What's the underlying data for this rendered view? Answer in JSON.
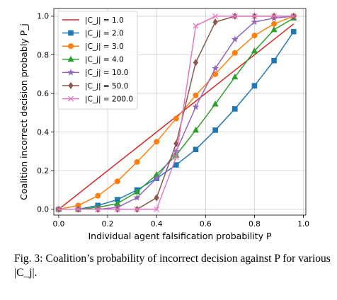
{
  "chart_data": {
    "type": "line",
    "xlabel": "Individual agent falsification probability P",
    "ylabel": "Coalition incorrect decision probably P_j",
    "xlim": [
      -0.02,
      1.01
    ],
    "ylim": [
      -0.03,
      1.04
    ],
    "x_ticks": [
      0.0,
      0.2,
      0.4,
      0.6,
      0.8,
      1.0
    ],
    "y_ticks": [
      0.0,
      0.2,
      0.4,
      0.6,
      0.8,
      1.0
    ],
    "tick_labels_x": [
      "0.0",
      "0.2",
      "0.4",
      "0.6",
      "0.8",
      "1.0"
    ],
    "tick_labels_y": [
      "0.0",
      "0.2",
      "0.4",
      "0.6",
      "0.8",
      "1.0"
    ],
    "grid": true,
    "legend_position": "top-left",
    "x": [
      0.0,
      0.08,
      0.16,
      0.24,
      0.32,
      0.4,
      0.48,
      0.56,
      0.64,
      0.72,
      0.8,
      0.88,
      0.96
    ],
    "series": [
      {
        "name": "|C_j| = 1.0",
        "color": "#d62728",
        "marker": "none",
        "values": [
          0.0,
          0.08,
          0.16,
          0.24,
          0.32,
          0.4,
          0.48,
          0.56,
          0.64,
          0.72,
          0.8,
          0.88,
          0.96
        ]
      },
      {
        "name": "|C_j| = 2.0",
        "color": "#1f77b4",
        "marker": "square",
        "values": [
          0.0,
          0.0,
          0.02,
          0.05,
          0.1,
          0.16,
          0.23,
          0.31,
          0.41,
          0.52,
          0.64,
          0.77,
          0.92
        ]
      },
      {
        "name": "|C_j| = 3.0",
        "color": "#ff7f0e",
        "marker": "circle",
        "values": [
          0.0,
          0.02,
          0.07,
          0.145,
          0.245,
          0.35,
          0.47,
          0.59,
          0.7,
          0.81,
          0.9,
          0.96,
          1.0
        ]
      },
      {
        "name": "|C_j| = 4.0",
        "color": "#2ca02c",
        "marker": "triangle",
        "values": [
          0.0,
          0.0,
          0.01,
          0.03,
          0.09,
          0.18,
          0.28,
          0.41,
          0.545,
          0.685,
          0.82,
          0.93,
          0.99
        ]
      },
      {
        "name": "|C_j| = 10.0",
        "color": "#9467bd",
        "marker": "star",
        "values": [
          0.0,
          0.0,
          0.0,
          0.01,
          0.06,
          0.16,
          0.3,
          0.53,
          0.73,
          0.88,
          0.97,
          0.99,
          1.0
        ]
      },
      {
        "name": "|C_j| = 50.0",
        "color": "#8c564b",
        "marker": "diamond",
        "values": [
          0.0,
          0.0,
          0.0,
          0.0,
          0.0,
          0.06,
          0.34,
          0.76,
          0.97,
          1.0,
          1.0,
          1.0,
          1.0
        ]
      },
      {
        "name": "|C_j| = 200.0",
        "color": "#e377c2",
        "marker": "x",
        "values": [
          0.0,
          0.0,
          0.0,
          0.0,
          0.0,
          0.0,
          0.27,
          0.95,
          1.0,
          1.0,
          1.0,
          1.0,
          1.0
        ]
      }
    ]
  },
  "caption": {
    "label": "Fig. 3:",
    "text": "Coalition’s probability of incorrect decision against P for various |C_j|."
  }
}
